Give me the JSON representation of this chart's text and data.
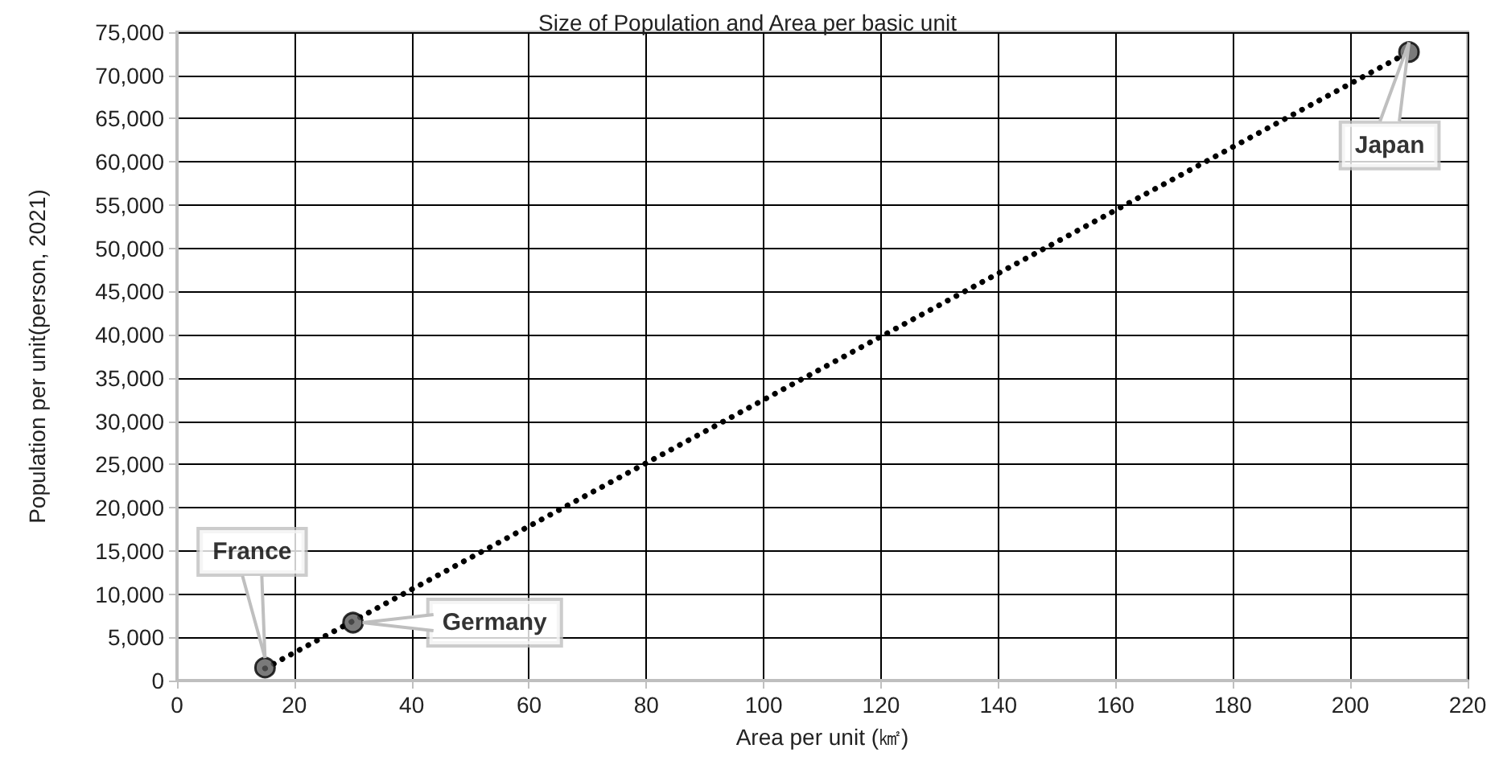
{
  "chart_data": {
    "type": "scatter",
    "title": "Size of Population and Area per basic unit",
    "xlabel": "Area per unit (㎢)",
    "ylabel": "Population per unit(person, 2021)",
    "series": [
      {
        "color": "#595959",
        "x": [
          15,
          30,
          210
        ],
        "values": [
          1500,
          6700,
          72700
        ],
        "marker": "circle"
      },
      {
        "type": "line",
        "color": "#000000",
        "x": [
          15,
          210
        ],
        "values": [
          1400,
          72700
        ],
        "line_style": "dotted",
        "marker": "none"
      }
    ],
    "annotations": [
      {
        "text": "France",
        "x": 15,
        "y": 1500
      },
      {
        "text": "Germany",
        "x": 30,
        "y": 6700
      },
      {
        "text": "Japan",
        "x": 210,
        "y": 72700
      }
    ],
    "xlim": [
      0,
      220
    ],
    "xticks": [
      0,
      20,
      40,
      60,
      80,
      100,
      120,
      140,
      160,
      180,
      200,
      220
    ],
    "ylim": [
      0,
      75000
    ],
    "yticks": [
      0,
      {
        "value": 5000,
        "label": "5,000"
      },
      {
        "value": 10000,
        "label": "10,000"
      },
      {
        "value": 15000,
        "label": "15,000"
      },
      {
        "value": 20000,
        "label": "20,000"
      },
      {
        "value": 25000,
        "label": "25,000"
      },
      {
        "value": 30000,
        "label": "30,000"
      },
      {
        "value": 35000,
        "label": "35,000"
      },
      {
        "value": 40000,
        "label": "40,000"
      },
      {
        "value": 45000,
        "label": "45,000"
      },
      {
        "value": 50000,
        "label": "50,000"
      },
      {
        "value": 55000,
        "label": "55,000"
      },
      {
        "value": 60000,
        "label": "60,000"
      },
      {
        "value": 65000,
        "label": "65,000"
      },
      {
        "value": 70000,
        "label": "70,000"
      },
      {
        "value": 75000,
        "label": "75,000"
      }
    ],
    "grid": true
  }
}
